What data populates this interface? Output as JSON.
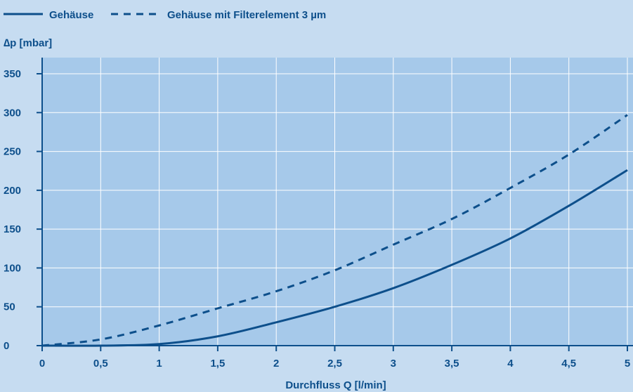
{
  "chart_data": {
    "type": "line",
    "title": "",
    "xlabel": "Durchfluss Q [l/min]",
    "ylabel": "∆p [mbar]",
    "xlim": [
      0,
      5
    ],
    "ylim": [
      0,
      350
    ],
    "x_ticks": [
      "0",
      "0,5",
      "1",
      "1,5",
      "2",
      "2,5",
      "3",
      "3,5",
      "4",
      "4,5",
      "5"
    ],
    "y_ticks": [
      "0",
      "50",
      "100",
      "150",
      "200",
      "250",
      "300",
      "350"
    ],
    "grid": true,
    "legend_position": "top-left",
    "colors": {
      "line": "#0d4f8b",
      "plot_bg": "#a6c9ea",
      "page_bg": "#c6dcf1",
      "grid": "#ffffff"
    },
    "series": [
      {
        "name": "Gehäuse",
        "style": "solid",
        "x": [
          0,
          0.5,
          1,
          1.5,
          2,
          2.5,
          3,
          3.5,
          4,
          4.5,
          5
        ],
        "y": [
          0,
          0,
          2,
          12,
          30,
          50,
          74,
          104,
          138,
          180,
          226
        ]
      },
      {
        "name": "Gehäuse mit Filterelement 3 µm",
        "style": "dashed",
        "x": [
          0,
          0.5,
          1,
          1.5,
          2,
          2.5,
          3,
          3.5,
          4,
          4.5,
          5
        ],
        "y": [
          0,
          8,
          26,
          48,
          70,
          97,
          130,
          163,
          203,
          246,
          297
        ]
      }
    ]
  }
}
